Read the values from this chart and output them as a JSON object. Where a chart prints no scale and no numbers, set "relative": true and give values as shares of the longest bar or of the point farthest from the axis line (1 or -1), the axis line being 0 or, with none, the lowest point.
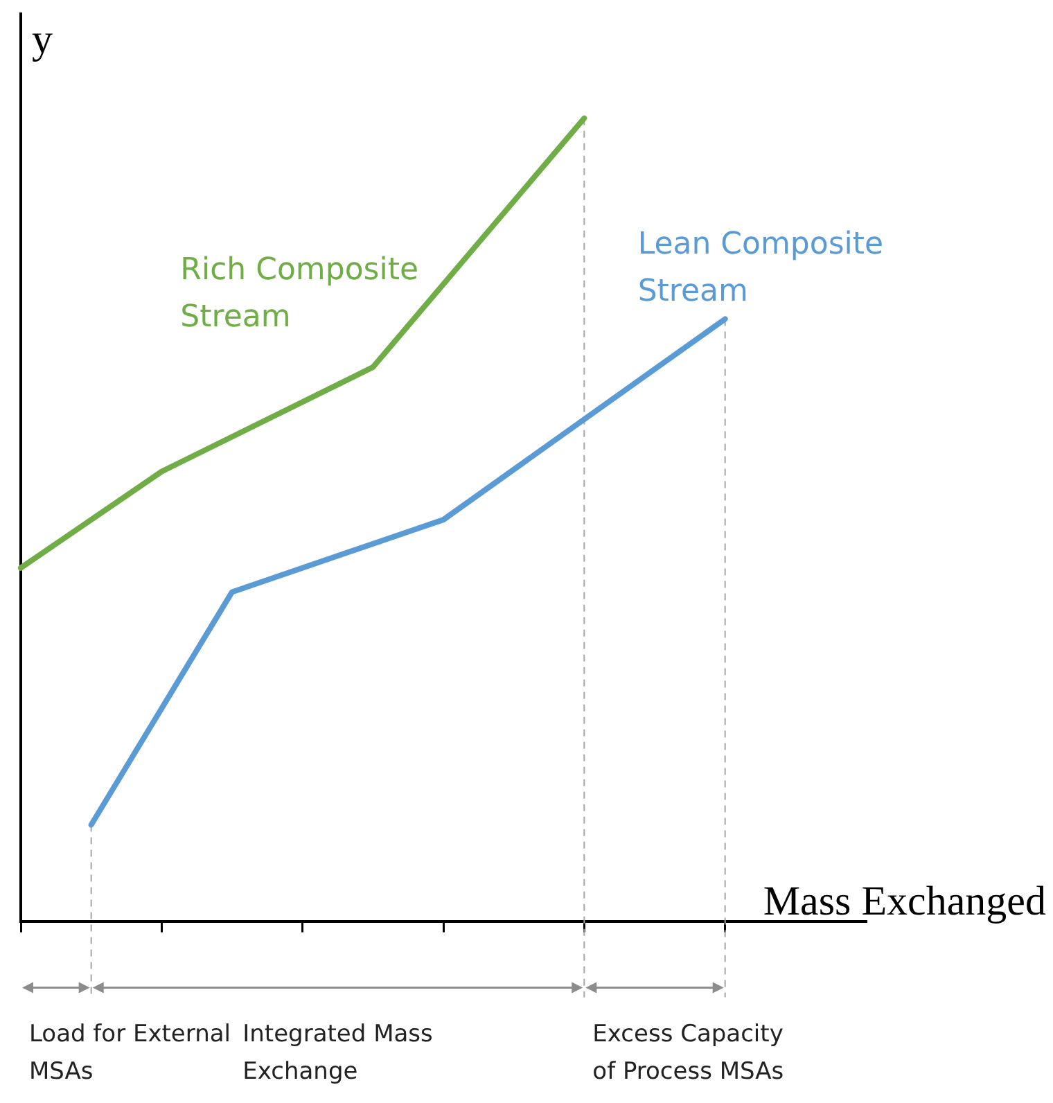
{
  "chart_data": {
    "type": "line",
    "relative": true,
    "xlabel": "Mass Exchanged",
    "ylabel": "y",
    "categories": [
      null,
      null,
      null,
      null,
      null,
      null,
      null,
      null,
      null,
      null,
      null,
      null,
      null
    ],
    "grid": false,
    "legend": false,
    "marker": "none",
    "line_style": "solid",
    "series": [
      {
        "name": "Rich Composite Stream",
        "color": "#70ad47",
        "values": [
          0.44,
          0.5,
          0.56,
          null,
          null,
          0.69,
          null,
          null,
          1,
          null,
          null,
          null,
          null
        ]
      },
      {
        "name": "Lean Composite Stream",
        "color": "#5b9bd5",
        "values": [
          null,
          0.12,
          null,
          0.41,
          null,
          null,
          0.5,
          null,
          null,
          null,
          0.75,
          null,
          null
        ]
      }
    ],
    "annotations": [
      "Load for External MSAs",
      "Integrated Mass Exchange",
      "Excess Capacity of Process MSAs"
    ]
  }
}
